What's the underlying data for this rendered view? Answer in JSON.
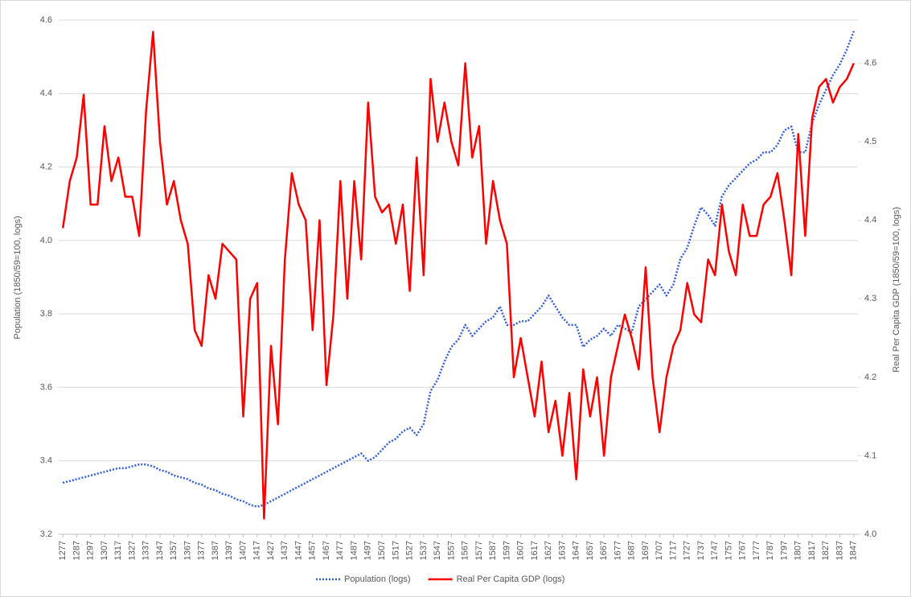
{
  "chart_data": {
    "type": "line",
    "y_label": "Population (1850/59=100, logs)",
    "y2_label": "Real Per Capita GDP (1850/59=100, logs)",
    "x": [
      1277,
      1282,
      1287,
      1292,
      1297,
      1302,
      1307,
      1312,
      1317,
      1322,
      1327,
      1332,
      1337,
      1342,
      1347,
      1352,
      1357,
      1362,
      1367,
      1372,
      1377,
      1382,
      1387,
      1392,
      1397,
      1402,
      1407,
      1412,
      1417,
      1422,
      1427,
      1432,
      1437,
      1442,
      1447,
      1452,
      1457,
      1462,
      1467,
      1472,
      1477,
      1482,
      1487,
      1492,
      1497,
      1502,
      1507,
      1512,
      1517,
      1522,
      1527,
      1532,
      1537,
      1542,
      1547,
      1552,
      1557,
      1562,
      1567,
      1572,
      1577,
      1582,
      1587,
      1592,
      1597,
      1602,
      1607,
      1612,
      1617,
      1622,
      1627,
      1632,
      1637,
      1642,
      1647,
      1652,
      1657,
      1662,
      1667,
      1672,
      1677,
      1682,
      1687,
      1692,
      1697,
      1702,
      1707,
      1712,
      1717,
      1722,
      1727,
      1732,
      1737,
      1742,
      1747,
      1752,
      1757,
      1762,
      1767,
      1772,
      1777,
      1782,
      1787,
      1792,
      1797,
      1802,
      1807,
      1812,
      1817,
      1822,
      1827,
      1832,
      1837,
      1842,
      1847
    ],
    "series": [
      {
        "name": "Population (logs)",
        "color": "#2f5fe0",
        "dashed": true,
        "values": [
          3.34,
          3.345,
          3.35,
          3.355,
          3.36,
          3.365,
          3.37,
          3.375,
          3.38,
          3.38,
          3.385,
          3.39,
          3.39,
          3.385,
          3.375,
          3.37,
          3.36,
          3.355,
          3.35,
          3.34,
          3.335,
          3.325,
          3.32,
          3.31,
          3.305,
          3.295,
          3.29,
          3.28,
          3.275,
          3.28,
          3.29,
          3.3,
          3.31,
          3.32,
          3.33,
          3.34,
          3.35,
          3.36,
          3.37,
          3.38,
          3.39,
          3.4,
          3.41,
          3.42,
          3.4,
          3.41,
          3.43,
          3.45,
          3.46,
          3.48,
          3.49,
          3.47,
          3.5,
          3.59,
          3.62,
          3.67,
          3.71,
          3.73,
          3.77,
          3.74,
          3.76,
          3.78,
          3.79,
          3.82,
          3.77,
          3.77,
          3.78,
          3.78,
          3.8,
          3.82,
          3.85,
          3.82,
          3.79,
          3.77,
          3.77,
          3.71,
          3.73,
          3.74,
          3.76,
          3.74,
          3.77,
          3.76,
          3.75,
          3.82,
          3.84,
          3.86,
          3.88,
          3.85,
          3.88,
          3.95,
          3.98,
          4.04,
          4.09,
          4.07,
          4.04,
          4.12,
          4.15,
          4.17,
          4.19,
          4.21,
          4.22,
          4.24,
          4.24,
          4.26,
          4.3,
          4.31,
          4.24,
          4.24,
          4.32,
          4.37,
          4.41,
          4.45,
          4.48,
          4.52,
          4.57
        ]
      },
      {
        "name": "Real Per Capita GDP (logs)",
        "color": "#ff0000",
        "dashed": false,
        "axis": "y2",
        "values": [
          4.39,
          4.45,
          4.48,
          4.56,
          4.42,
          4.42,
          4.52,
          4.45,
          4.48,
          4.43,
          4.43,
          4.38,
          4.54,
          4.64,
          4.5,
          4.42,
          4.45,
          4.4,
          4.37,
          4.26,
          4.24,
          4.33,
          4.3,
          4.37,
          4.36,
          4.35,
          4.15,
          4.3,
          4.32,
          4.02,
          4.24,
          4.14,
          4.35,
          4.46,
          4.42,
          4.4,
          4.26,
          4.4,
          4.19,
          4.28,
          4.45,
          4.3,
          4.45,
          4.35,
          4.55,
          4.43,
          4.41,
          4.42,
          4.37,
          4.42,
          4.31,
          4.48,
          4.33,
          4.58,
          4.5,
          4.55,
          4.5,
          4.47,
          4.6,
          4.48,
          4.52,
          4.37,
          4.45,
          4.4,
          4.37,
          4.2,
          4.25,
          4.2,
          4.15,
          4.22,
          4.13,
          4.17,
          4.1,
          4.18,
          4.07,
          4.21,
          4.15,
          4.2,
          4.1,
          4.2,
          4.24,
          4.28,
          4.25,
          4.21,
          4.34,
          4.2,
          4.13,
          4.2,
          4.24,
          4.26,
          4.32,
          4.28,
          4.27,
          4.35,
          4.33,
          4.42,
          4.36,
          4.33,
          4.42,
          4.38,
          4.38,
          4.42,
          4.43,
          4.46,
          4.4,
          4.33,
          4.51,
          4.38,
          4.53,
          4.57,
          4.58,
          4.55,
          4.57,
          4.58,
          4.6
        ]
      }
    ],
    "xlim": [
      1274,
      1850
    ],
    "xticks": [
      1277,
      1287,
      1297,
      1307,
      1317,
      1327,
      1337,
      1347,
      1357,
      1367,
      1377,
      1387,
      1397,
      1407,
      1417,
      1427,
      1437,
      1447,
      1457,
      1467,
      1477,
      1487,
      1497,
      1507,
      1517,
      1527,
      1537,
      1547,
      1557,
      1567,
      1577,
      1587,
      1597,
      1607,
      1617,
      1627,
      1637,
      1647,
      1657,
      1667,
      1677,
      1687,
      1697,
      1707,
      1717,
      1727,
      1737,
      1747,
      1757,
      1767,
      1777,
      1787,
      1797,
      1807,
      1817,
      1827,
      1837,
      1847
    ],
    "ylim": [
      3.2,
      4.6
    ],
    "yticks": [
      {
        "value": 3.2,
        "label": "3.2"
      },
      3.4,
      3.6,
      3.8,
      {
        "value": 4,
        "label": "4.0"
      },
      4.2,
      4.4,
      4.6
    ],
    "y2lim": [
      4,
      4.655
    ],
    "y2ticks": [
      {
        "value": 4,
        "label": "4.0"
      },
      4.1,
      4.2,
      4.3,
      4.4,
      4.5,
      4.6
    ],
    "grid": true,
    "legend": "bottom"
  }
}
